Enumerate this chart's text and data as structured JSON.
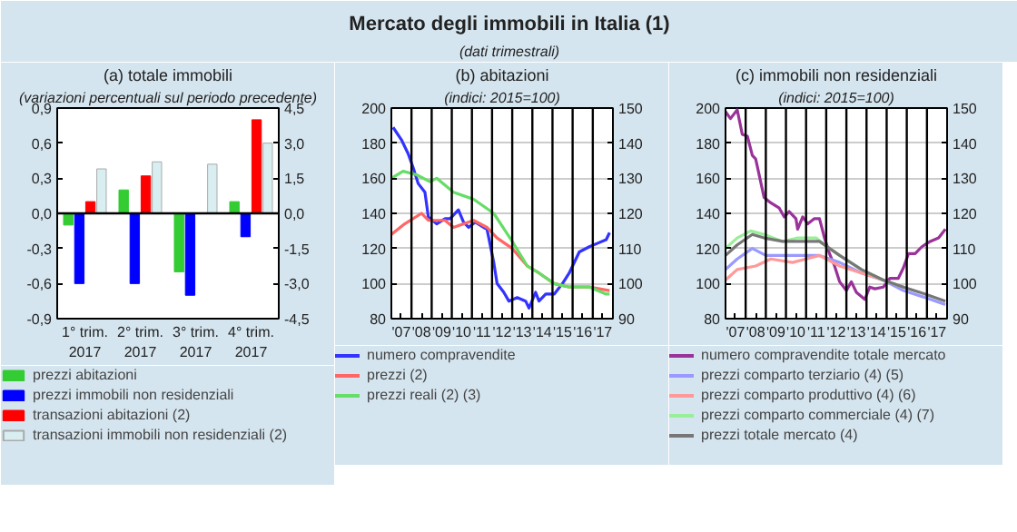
{
  "chart_data": [
    {
      "type": "other",
      "title": "Mercato degli immobili in Italia (1)",
      "subtitle": "(dati trimestrali)"
    },
    {
      "type": "bar",
      "title": "(a) totale immobili",
      "subtitle": "(variazioni percentuali sul periodo precedente)",
      "categories": [
        "1° trim.\n2017",
        "2° trim.\n2017",
        "3° trim.\n2017",
        "4° trim.\n2017"
      ],
      "series": [
        {
          "name": "prezzi abitazioni",
          "color": "#33cc33",
          "values": [
            -0.1,
            0.2,
            -0.5,
            0.1
          ]
        },
        {
          "name": "prezzi immobili non residenziali",
          "color": "#0000ff",
          "values": [
            -0.6,
            -0.6,
            -0.7,
            -0.2
          ]
        },
        {
          "name": "transazioni abitazioni (2)",
          "color": "#ff0000",
          "axis": "y2",
          "values": [
            0.5,
            1.6,
            null,
            4.0
          ]
        },
        {
          "name": "transazioni immobili non residenziali (2)",
          "color": "#d8eef0",
          "axis": "y2",
          "values": [
            1.9,
            2.2,
            2.1,
            3.0
          ]
        }
      ],
      "ylim": [
        -0.9,
        0.9
      ],
      "yticks": [
        {
          "value": -0.9,
          "label": "-0,9"
        },
        {
          "value": -0.6,
          "label": "-0,6"
        },
        {
          "value": -0.3,
          "label": "-0,3"
        },
        {
          "value": 0,
          "label": "0,0"
        },
        {
          "value": 0.3,
          "label": "0,3"
        },
        {
          "value": 0.6,
          "label": "0,6"
        },
        {
          "value": 0.9,
          "label": "0,9"
        }
      ],
      "y2lim": [
        -4.5,
        4.5
      ],
      "y2ticks": [
        {
          "value": -4.5,
          "label": "-4,5"
        },
        {
          "value": -3,
          "label": "-3,0"
        },
        {
          "value": -1.5,
          "label": "-1,5"
        },
        {
          "value": 0,
          "label": "0,0"
        },
        {
          "value": 1.5,
          "label": "1,5"
        },
        {
          "value": 3,
          "label": "3,0"
        },
        {
          "value": 4.5,
          "label": "4,5"
        }
      ],
      "ref_lines": [
        {
          "axis": "y",
          "value": 0,
          "color": "#000000"
        }
      ],
      "grid": false,
      "legend": "bottom"
    },
    {
      "type": "line",
      "title": "(b) abitazioni",
      "subtitle": "(indici: 2015=100)",
      "series": [
        {
          "name": "numero compravendite",
          "color": "#3333ff",
          "x": [
            "2007-02",
            "2007-07",
            "2007-11",
            "2008-02",
            "2008-05",
            "2008-09",
            "2008-11",
            "2009-04",
            "2009-09",
            "2009-12",
            "2010-05",
            "2010-08",
            "2010-11",
            "2011-03",
            "2011-08",
            "2011-10",
            "2012-02",
            "2012-04",
            "2012-08",
            "2012-11",
            "2013-04",
            "2013-09",
            "2013-11",
            "2014-03",
            "2014-05",
            "2014-09",
            "2015-02",
            "2015-07",
            "2015-11",
            "2016-05",
            "2016-11",
            "2017-04",
            "2017-09",
            "2017-11"
          ],
          "values": [
            189,
            182,
            174,
            166,
            157,
            152,
            138,
            134,
            137,
            137,
            142,
            135,
            132,
            135,
            132,
            131,
            112,
            100,
            95,
            90,
            92,
            90,
            86,
            95,
            90,
            94,
            94,
            100,
            106,
            118,
            121,
            123,
            125,
            129
          ]
        },
        {
          "name": "prezzi (2)",
          "color": "#ff6666",
          "axis": "y2",
          "x": [
            "2007-01",
            "2007-09",
            "2008-07",
            "2008-11",
            "2009-09",
            "2010-02",
            "2011-02",
            "2011-10",
            "2012-04",
            "2013-01",
            "2013-10",
            "2014-05",
            "2015-02",
            "2015-11",
            "2016-11",
            "2017-11"
          ],
          "values": [
            114,
            117,
            120,
            118,
            118,
            116,
            118,
            116,
            113,
            110,
            105,
            103,
            100,
            99,
            99,
            98
          ]
        },
        {
          "name": "prezzi reali (2) (3)",
          "color": "#66dd66",
          "axis": "y2",
          "x": [
            "2007-01",
            "2007-08",
            "2008-04",
            "2008-12",
            "2009-04",
            "2010-02",
            "2011-02",
            "2012-02",
            "2013-01",
            "2013-10",
            "2014-05",
            "2015-02",
            "2015-11",
            "2016-11",
            "2017-09",
            "2017-11"
          ],
          "values": [
            130,
            132,
            131,
            129,
            130,
            126,
            124,
            120,
            112,
            105,
            103,
            100,
            99,
            99,
            97,
            97
          ]
        }
      ],
      "xlim": [
        "2007-01",
        "2018-01"
      ],
      "xticks": [
        {
          "value": "2007-07",
          "label": "'07"
        },
        {
          "value": "2008-07",
          "label": "'08"
        },
        {
          "value": "2009-07",
          "label": "'09"
        },
        {
          "value": "2010-07",
          "label": "'10"
        },
        {
          "value": "2011-07",
          "label": "'11"
        },
        {
          "value": "2012-07",
          "label": "'12"
        },
        {
          "value": "2013-07",
          "label": "'13"
        },
        {
          "value": "2014-07",
          "label": "'14"
        },
        {
          "value": "2015-07",
          "label": "'15"
        },
        {
          "value": "2016-07",
          "label": "'16"
        },
        {
          "value": "2017-07",
          "label": "'17"
        }
      ],
      "ylim": [
        80,
        200
      ],
      "yticks": [
        80,
        100,
        120,
        140,
        160,
        180,
        200
      ],
      "y2lim": [
        90,
        150
      ],
      "y2ticks": [
        90,
        100,
        110,
        120,
        130,
        140,
        150
      ],
      "ref_lines": [
        {
          "axis": "x",
          "value": "2008-01",
          "color": "#000000"
        },
        {
          "axis": "x",
          "value": "2009-01",
          "color": "#000000"
        },
        {
          "axis": "x",
          "value": "2010-01",
          "color": "#000000"
        },
        {
          "axis": "x",
          "value": "2011-01",
          "color": "#000000"
        },
        {
          "axis": "x",
          "value": "2012-01",
          "color": "#000000"
        },
        {
          "axis": "x",
          "value": "2013-01",
          "color": "#000000"
        },
        {
          "axis": "x",
          "value": "2014-01",
          "color": "#000000"
        },
        {
          "axis": "x",
          "value": "2015-01",
          "color": "#000000"
        },
        {
          "axis": "x",
          "value": "2016-01",
          "color": "#000000"
        },
        {
          "axis": "x",
          "value": "2017-01",
          "color": "#000000"
        }
      ],
      "grid": "y",
      "legend": "bottom"
    },
    {
      "type": "line",
      "title": "(c) immobili non residenziali",
      "subtitle": "(indici: 2015=100)",
      "series": [
        {
          "name": "numero compravendite totale mercato",
          "color": "#993399",
          "x": [
            "2007-01",
            "2007-04",
            "2007-08",
            "2007-11",
            "2008-02",
            "2008-05",
            "2008-07",
            "2008-12",
            "2009-04",
            "2009-09",
            "2009-12",
            "2010-03",
            "2010-07",
            "2010-08",
            "2010-11",
            "2011-02",
            "2011-06",
            "2011-09",
            "2011-12",
            "2012-03",
            "2012-06",
            "2012-09",
            "2013-01",
            "2013-04",
            "2013-07",
            "2013-12",
            "2014-03",
            "2014-06",
            "2014-11",
            "2015-03",
            "2015-08",
            "2015-11",
            "2016-02",
            "2016-06",
            "2016-10",
            "2017-03",
            "2017-08",
            "2017-12"
          ],
          "values": [
            198,
            194,
            199,
            185,
            184,
            173,
            171,
            149,
            146,
            143,
            138,
            141,
            137,
            131,
            138,
            134,
            137,
            137,
            126,
            117,
            110,
            101,
            96,
            101,
            95,
            91,
            98,
            97,
            98,
            103,
            103,
            109,
            117,
            117,
            121,
            124,
            126,
            131
          ]
        },
        {
          "name": "prezzi comparto terziario (4) (5)",
          "color": "#9999ff",
          "axis": "y2",
          "x": [
            "2007-01",
            "2007-08",
            "2008-05",
            "2009-01",
            "2009-12",
            "2010-10",
            "2011-09",
            "2012-09",
            "2013-10",
            "2014-11",
            "2015-11",
            "2016-12",
            "2017-12"
          ],
          "values": [
            104,
            107,
            110,
            108,
            108,
            108,
            108,
            106,
            103,
            101,
            98,
            96,
            94
          ]
        },
        {
          "name": "prezzi comparto produttivo (4) (6)",
          "color": "#ff9999",
          "axis": "y2",
          "x": [
            "2007-01",
            "2007-08",
            "2008-07",
            "2009-04",
            "2010-05",
            "2011-01",
            "2011-09",
            "2012-09",
            "2013-10",
            "2014-11",
            "2015-11"
          ],
          "values": [
            101,
            104,
            105,
            107,
            106,
            107,
            108,
            105,
            103,
            101,
            99
          ]
        },
        {
          "name": "prezzi comparto commerciale (4) (7)",
          "color": "#99ee99",
          "axis": "y2",
          "x": [
            "2007-01",
            "2007-08",
            "2008-04",
            "2008-12",
            "2009-11",
            "2010-08",
            "2011-07",
            "2011-12",
            "2012-09",
            "2013-10",
            "2014-11",
            "2015-11"
          ],
          "values": [
            110,
            113,
            115,
            114,
            112,
            113,
            113,
            111,
            108,
            104,
            101,
            99
          ]
        },
        {
          "name": "prezzi totale mercato (4)",
          "color": "#777777",
          "axis": "y2",
          "x": [
            "2007-01",
            "2007-08",
            "2008-05",
            "2008-12",
            "2009-11",
            "2010-08",
            "2011-09",
            "2012-09",
            "2013-10",
            "2014-11",
            "2015-11",
            "2016-12",
            "2017-12"
          ],
          "values": [
            108,
            111,
            114,
            113,
            112,
            112,
            112,
            108,
            104,
            101,
            99,
            97,
            95
          ]
        }
      ],
      "xlim": [
        "2007-01",
        "2018-01"
      ],
      "xticks": [
        {
          "value": "2007-07",
          "label": "'07"
        },
        {
          "value": "2008-07",
          "label": "'08"
        },
        {
          "value": "2009-07",
          "label": "'09"
        },
        {
          "value": "2010-07",
          "label": "'10"
        },
        {
          "value": "2011-07",
          "label": "'11"
        },
        {
          "value": "2012-07",
          "label": "'12"
        },
        {
          "value": "2013-07",
          "label": "'13"
        },
        {
          "value": "2014-07",
          "label": "'14"
        },
        {
          "value": "2015-07",
          "label": "'15"
        },
        {
          "value": "2016-07",
          "label": "'16"
        },
        {
          "value": "2017-07",
          "label": "'17"
        }
      ],
      "ylim": [
        80,
        200
      ],
      "yticks": [
        80,
        100,
        120,
        140,
        160,
        180,
        200
      ],
      "y2lim": [
        90,
        150
      ],
      "y2ticks": [
        90,
        100,
        110,
        120,
        130,
        140,
        150
      ],
      "ref_lines": [
        {
          "axis": "x",
          "value": "2008-01",
          "color": "#000000"
        },
        {
          "axis": "x",
          "value": "2009-01",
          "color": "#000000"
        },
        {
          "axis": "x",
          "value": "2010-01",
          "color": "#000000"
        },
        {
          "axis": "x",
          "value": "2011-01",
          "color": "#000000"
        },
        {
          "axis": "x",
          "value": "2012-01",
          "color": "#000000"
        },
        {
          "axis": "x",
          "value": "2013-01",
          "color": "#000000"
        },
        {
          "axis": "x",
          "value": "2014-01",
          "color": "#000000"
        },
        {
          "axis": "x",
          "value": "2015-01",
          "color": "#000000"
        },
        {
          "axis": "x",
          "value": "2016-01",
          "color": "#000000"
        },
        {
          "axis": "x",
          "value": "2017-01",
          "color": "#000000"
        }
      ],
      "grid": "y",
      "legend": "bottom"
    }
  ]
}
